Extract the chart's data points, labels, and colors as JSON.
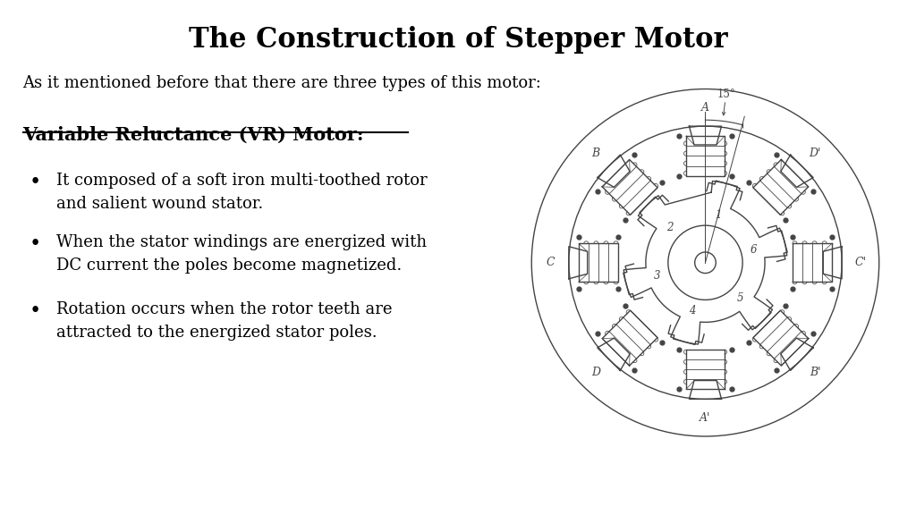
{
  "title": "The Construction of Stepper Motor",
  "subtitle": "As it mentioned before that there are three types of this motor:",
  "section_title": "Variable Reluctance (VR) Motor:",
  "bullets": [
    "It composed of a soft iron multi-toothed rotor\nand salient wound stator.",
    "When the stator windings are energized with\nDC current the poles become magnetized.",
    "Rotation occurs when the rotor teeth are\nattracted to the energized stator poles."
  ],
  "bg_color": "#ffffff",
  "text_color": "#000000",
  "diagram_line_color": "#444444",
  "title_fontsize": 22,
  "subtitle_fontsize": 13,
  "section_fontsize": 15,
  "bullet_fontsize": 13,
  "stator_angles": [
    90,
    135,
    180,
    225,
    270,
    315,
    0,
    45
  ],
  "stator_labels": [
    "A",
    "B",
    "C",
    "D",
    "A'",
    "B'",
    "C'",
    "D'"
  ],
  "rotor_tooth_angles": [
    75,
    15,
    -45,
    -105,
    -165,
    -225
  ],
  "rotor_labels": [
    "1",
    "6",
    "5",
    "4",
    "3",
    "2"
  ],
  "angle_label": "15°"
}
